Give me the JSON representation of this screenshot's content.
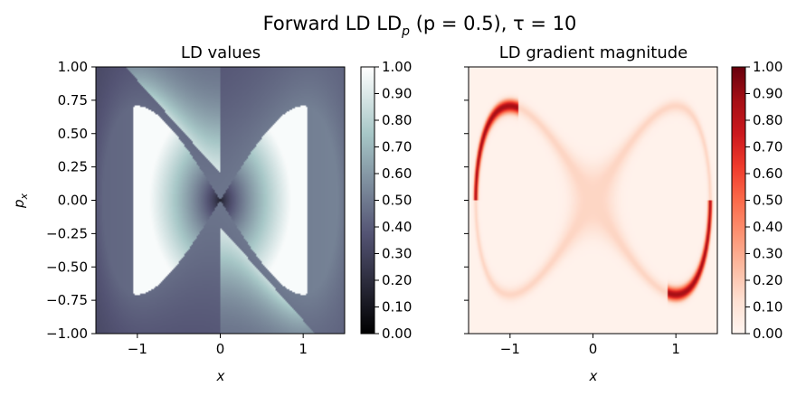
{
  "suptitle": {
    "main": "Forward LD LD",
    "sub": "p",
    "rest": " (p = 0.5), τ = 10"
  },
  "chart_data": [
    {
      "type": "heatmap",
      "title": "LD values",
      "xlabel": "x",
      "ylabel": "p",
      "ylabel_sub": "x",
      "xlim": [
        -1.5,
        1.5
      ],
      "ylim": [
        -1.0,
        1.0
      ],
      "x_ticks": [
        -1,
        0,
        1
      ],
      "x_tick_labels": [
        "−1",
        "0",
        "1"
      ],
      "y_ticks": [
        1.0,
        0.75,
        0.5,
        0.25,
        0.0,
        -0.25,
        -0.5,
        -0.75,
        -1.0
      ],
      "y_tick_labels": [
        "1.00",
        "0.75",
        "0.50",
        "0.25",
        "0.00",
        "−0.25",
        "−0.50",
        "−0.75",
        "−1.00"
      ],
      "colormap": "bone",
      "colorbar": {
        "range": [
          0.0,
          1.0
        ],
        "ticks": [
          1.0,
          0.9,
          0.8,
          0.7,
          0.6,
          0.5,
          0.4,
          0.3,
          0.2,
          0.1,
          0.0
        ],
        "tick_labels": [
          "1.00",
          "0.90",
          "0.80",
          "0.70",
          "0.60",
          "0.50",
          "0.40",
          "0.30",
          "0.20",
          "0.10",
          "0.00"
        ]
      },
      "features": {
        "center_min": {
          "x": 0.0,
          "y": 0.0,
          "value": 0.0
        },
        "separatrix": "eye-shaped curve through saddles at x = -1 and x = 1",
        "saddle_left": {
          "x": -1.0,
          "y": 0.05
        },
        "saddle_right": {
          "x": 1.0,
          "y": -0.05
        },
        "separatrix_top": {
          "x": 0.0,
          "y": 0.7
        },
        "separatrix_bottom": {
          "x": 0.0,
          "y": -0.7
        },
        "outer_background_value": 0.38,
        "lobe_value_max": 0.98
      }
    },
    {
      "type": "heatmap",
      "title": "LD gradient magnitude",
      "xlabel": "x",
      "xlim": [
        -1.5,
        1.5
      ],
      "ylim": [
        -1.0,
        1.0
      ],
      "x_ticks": [
        -1,
        0,
        1
      ],
      "x_tick_labels": [
        "−1",
        "0",
        "1"
      ],
      "y_ticks": [
        1.0,
        0.75,
        0.5,
        0.25,
        0.0,
        -0.25,
        -0.5,
        -0.75,
        -1.0
      ],
      "y_tick_labels": [],
      "colormap": "reds",
      "colorbar": {
        "range": [
          0.0,
          1.0
        ],
        "ticks": [
          1.0,
          0.9,
          0.8,
          0.7,
          0.6,
          0.5,
          0.4,
          0.3,
          0.2,
          0.1,
          0.0
        ],
        "tick_labels": [
          "1.00",
          "0.90",
          "0.80",
          "0.70",
          "0.60",
          "0.50",
          "0.40",
          "0.30",
          "0.20",
          "0.10",
          "0.00"
        ]
      },
      "features": {
        "background_value": 0.02,
        "separatrix_eye_value": 0.15,
        "outer_branch_value": 0.85,
        "saddle_left": {
          "x": -1.0,
          "y": 0.05
        },
        "saddle_right": {
          "x": 1.0,
          "y": -0.05
        }
      }
    }
  ]
}
